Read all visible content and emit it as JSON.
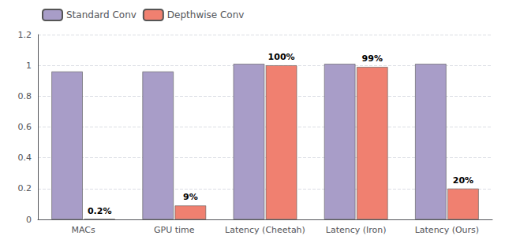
{
  "chart_data": {
    "type": "bar",
    "categories": [
      "MACs",
      "GPU time",
      "Latency (Cheetah)",
      "Latency (Iron)",
      "Latency (Ours)"
    ],
    "series": [
      {
        "name": "Standard Conv",
        "color": "#a89dc8",
        "values": [
          0.96,
          0.96,
          1.01,
          1.01,
          1.01
        ]
      },
      {
        "name": "Depthwise Conv",
        "color": "#f08070",
        "values": [
          0.002,
          0.09,
          1.0,
          0.99,
          0.2
        ],
        "value_labels": [
          "0.2%",
          "9%",
          "100%",
          "99%",
          "20%"
        ]
      }
    ],
    "ylim": [
      0,
      1.2
    ],
    "yticks": [
      0,
      0.2,
      0.4,
      0.6,
      0.8,
      1.0,
      1.2
    ],
    "grid": true,
    "legend": "upper left"
  }
}
